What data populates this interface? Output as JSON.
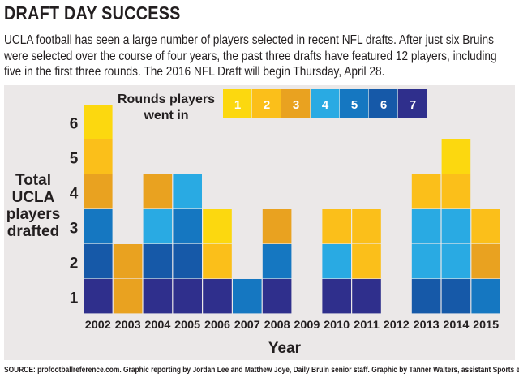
{
  "header": {
    "title": "DRAFT DAY SUCCESS",
    "subtitle": "UCLA football has seen a large number of players selected in recent NFL drafts. After just six Bruins were selected over the course of four years, the past three drafts have featured 12 players, including five in the first three rounds. The 2016 NFL Draft will begin Thursday, April 28."
  },
  "footer": {
    "source_label": "SOURCE:",
    "credits": " profootballreference.com. Graphic reporting by Jordan Lee and Matthew Joye, Daily Bruin senior staff. Graphic by Tanner Walters, assistant Sports editor."
  },
  "chart_data": {
    "type": "bar",
    "stacked": true,
    "xlabel": "Year",
    "ylabel_lines": [
      "Total",
      "UCLA",
      "players",
      "drafted"
    ],
    "categories": [
      "2002",
      "2003",
      "2004",
      "2005",
      "2006",
      "2007",
      "2008",
      "2009",
      "2010",
      "2011",
      "2012",
      "2013",
      "2014",
      "2015"
    ],
    "y_ticks": [
      "1",
      "2",
      "3",
      "4",
      "5",
      "6"
    ],
    "ylim": [
      0,
      6
    ],
    "legend": {
      "title_lines": [
        "Rounds players",
        "went in"
      ],
      "placement": "top-right",
      "rounds": [
        "1",
        "2",
        "3",
        "4",
        "5",
        "6",
        "7"
      ]
    },
    "round_colors": {
      "1": "#fcd80f",
      "2": "#fbbf1a",
      "3": "#e9a220",
      "4": "#29aae3",
      "5": "#1577c1",
      "6": "#1659a8",
      "7": "#2f2f8c"
    },
    "stacks": [
      [
        7,
        6,
        5,
        3,
        2,
        1
      ],
      [
        3,
        3
      ],
      [
        7,
        6,
        4,
        3
      ],
      [
        7,
        6,
        5,
        4
      ],
      [
        7,
        2,
        1
      ],
      [
        5
      ],
      [
        7,
        5,
        3
      ],
      [],
      [
        7,
        4,
        2
      ],
      [
        7,
        2,
        2
      ],
      [],
      [
        6,
        4,
        4,
        2
      ],
      [
        6,
        4,
        4,
        2,
        1
      ],
      [
        5,
        3,
        2
      ]
    ],
    "totals": [
      6,
      2,
      4,
      4,
      3,
      1,
      3,
      0,
      3,
      3,
      0,
      4,
      5,
      3
    ]
  }
}
